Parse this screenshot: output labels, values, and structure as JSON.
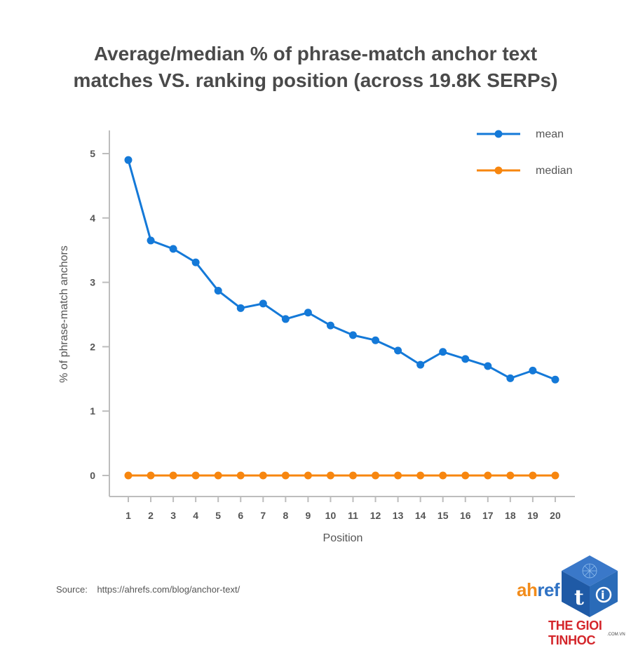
{
  "chart_data": {
    "type": "line",
    "title_line1": "Average/median % of phrase-match anchor text",
    "title_line2": "matches VS. ranking position (across 19.8K SERPs)",
    "xlabel": "Position",
    "ylabel": "% of phrase-match anchors",
    "x": [
      1,
      2,
      3,
      4,
      5,
      6,
      7,
      8,
      9,
      10,
      11,
      12,
      13,
      14,
      15,
      16,
      17,
      18,
      19,
      20
    ],
    "yticks": [
      0,
      1,
      2,
      3,
      4,
      5
    ],
    "ylim": [
      0,
      5.4
    ],
    "grid": false,
    "legend": "top-right",
    "series": [
      {
        "name": "mean",
        "color": "#1479d8",
        "values": [
          4.9,
          3.65,
          3.52,
          3.31,
          2.87,
          2.6,
          2.67,
          2.43,
          2.53,
          2.33,
          2.18,
          2.1,
          1.94,
          1.72,
          1.92,
          1.81,
          1.7,
          1.51,
          1.63,
          1.49
        ]
      },
      {
        "name": "median",
        "color": "#f7860f",
        "values": [
          0,
          0,
          0,
          0,
          0,
          0,
          0,
          0,
          0,
          0,
          0,
          0,
          0,
          0,
          0,
          0,
          0,
          0,
          0,
          0
        ]
      }
    ]
  },
  "source": {
    "label": "Source:",
    "url": "https://ahrefs.com/blog/anchor-text/"
  },
  "logo": {
    "part1": "ah",
    "part2": "ref"
  },
  "watermark": {
    "name": "THE GIOI TINHOC",
    "sub": ".COM.VN"
  }
}
